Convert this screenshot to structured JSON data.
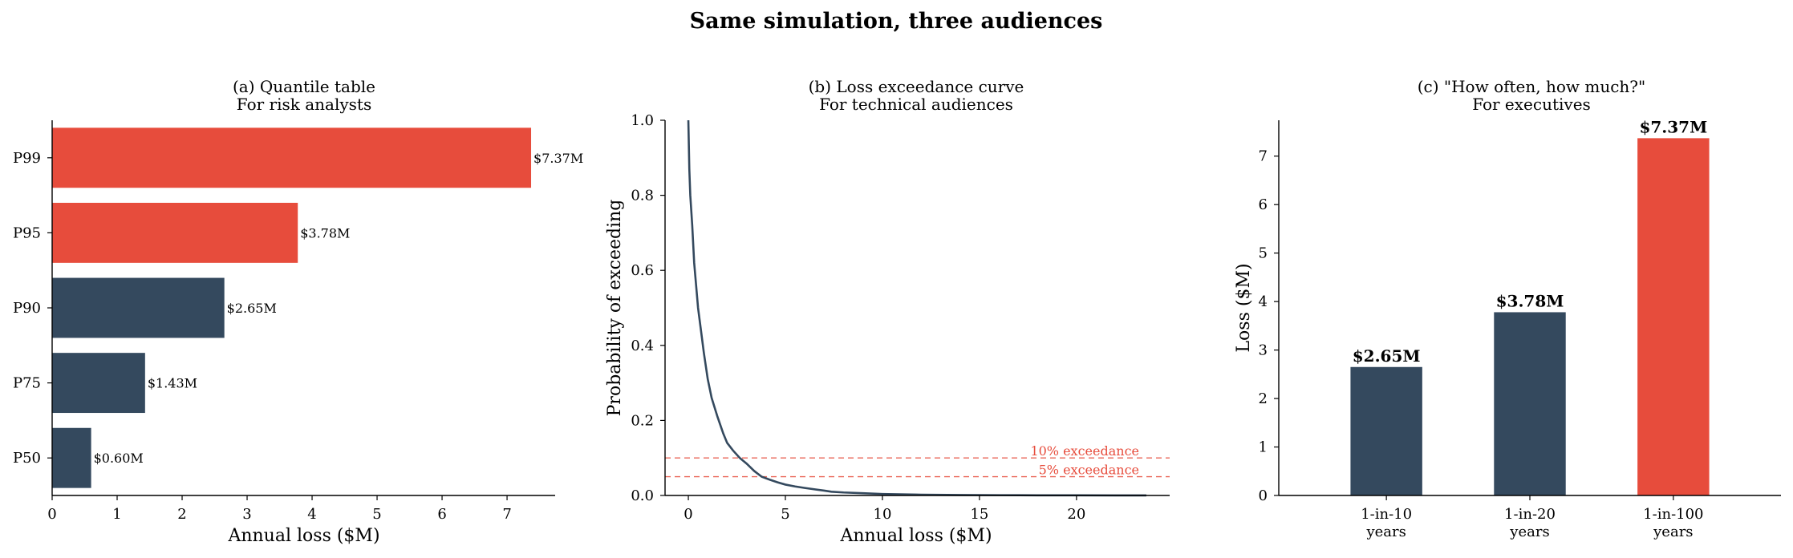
{
  "figure": {
    "title": "Same simulation, three audiences"
  },
  "colors": {
    "navy": "#34495e",
    "red": "#e74c3c",
    "axis": "#000000",
    "refline": "#e74c3c"
  },
  "chart_data": [
    {
      "type": "bar",
      "orientation": "horizontal",
      "title": "(a) Quantile table",
      "subtitle": "For risk analysts",
      "xlabel": "Annual loss ($M)",
      "ylabel": "",
      "categories": [
        "P50",
        "P75",
        "P90",
        "P95",
        "P99"
      ],
      "values": [
        0.6,
        1.43,
        2.65,
        3.78,
        7.37
      ],
      "labels": [
        "$0.60M",
        "$1.43M",
        "$2.65M",
        "$3.78M",
        "$7.37M"
      ],
      "bar_colors": [
        "navy",
        "navy",
        "navy",
        "red",
        "red"
      ],
      "xlim": [
        0,
        7.74
      ],
      "xticks": [
        0,
        1,
        2,
        3,
        4,
        5,
        6,
        7
      ]
    },
    {
      "type": "line",
      "title": "(b) Loss exceedance curve",
      "subtitle": "For technical audiences",
      "xlabel": "Annual loss ($M)",
      "ylabel": "Probability of exceeding",
      "xlim": [
        -1.2,
        24.8
      ],
      "ylim": [
        0,
        1.0
      ],
      "xticks": [
        0,
        5,
        10,
        15,
        20
      ],
      "yticks": [
        0.0,
        0.2,
        0.4,
        0.6,
        0.8,
        1.0
      ],
      "series": [
        {
          "x": [
            0.0,
            0.05,
            0.1,
            0.2,
            0.3,
            0.4,
            0.5,
            0.6,
            0.8,
            1.0,
            1.2,
            1.5,
            1.8,
            2.0,
            2.3,
            2.65,
            3.0,
            3.4,
            3.78,
            4.2,
            4.6,
            5.0,
            5.5,
            6.0,
            7.0,
            7.37,
            8.0,
            9.0,
            10.0,
            12.0,
            14.0,
            16.0,
            18.0,
            20.0,
            22.0,
            23.6
          ],
          "y": [
            1.0,
            0.87,
            0.8,
            0.72,
            0.62,
            0.56,
            0.5,
            0.46,
            0.38,
            0.31,
            0.26,
            0.21,
            0.165,
            0.14,
            0.12,
            0.1,
            0.085,
            0.065,
            0.05,
            0.042,
            0.035,
            0.029,
            0.024,
            0.02,
            0.013,
            0.01,
            0.008,
            0.006,
            0.004,
            0.002,
            0.0012,
            0.0008,
            0.0005,
            0.0003,
            0.0002,
            0.0001
          ]
        }
      ],
      "reference_lines": [
        {
          "y": 0.1,
          "label": "10% exceedance"
        },
        {
          "y": 0.05,
          "label": "5% exceedance"
        }
      ]
    },
    {
      "type": "bar",
      "title": "(c) \"How often, how much?\"",
      "subtitle": "For executives",
      "xlabel": "",
      "ylabel": "Loss ($M)",
      "categories": [
        [
          "1-in-10",
          "years"
        ],
        [
          "1-in-20",
          "years"
        ],
        [
          "1-in-100",
          "years"
        ]
      ],
      "values": [
        2.65,
        3.78,
        7.37
      ],
      "labels": [
        "$2.65M",
        "$3.78M",
        "$7.37M"
      ],
      "bar_colors": [
        "navy",
        "navy",
        "red"
      ],
      "ylim": [
        0,
        7.74
      ],
      "yticks": [
        0,
        1,
        2,
        3,
        4,
        5,
        6,
        7
      ]
    }
  ]
}
